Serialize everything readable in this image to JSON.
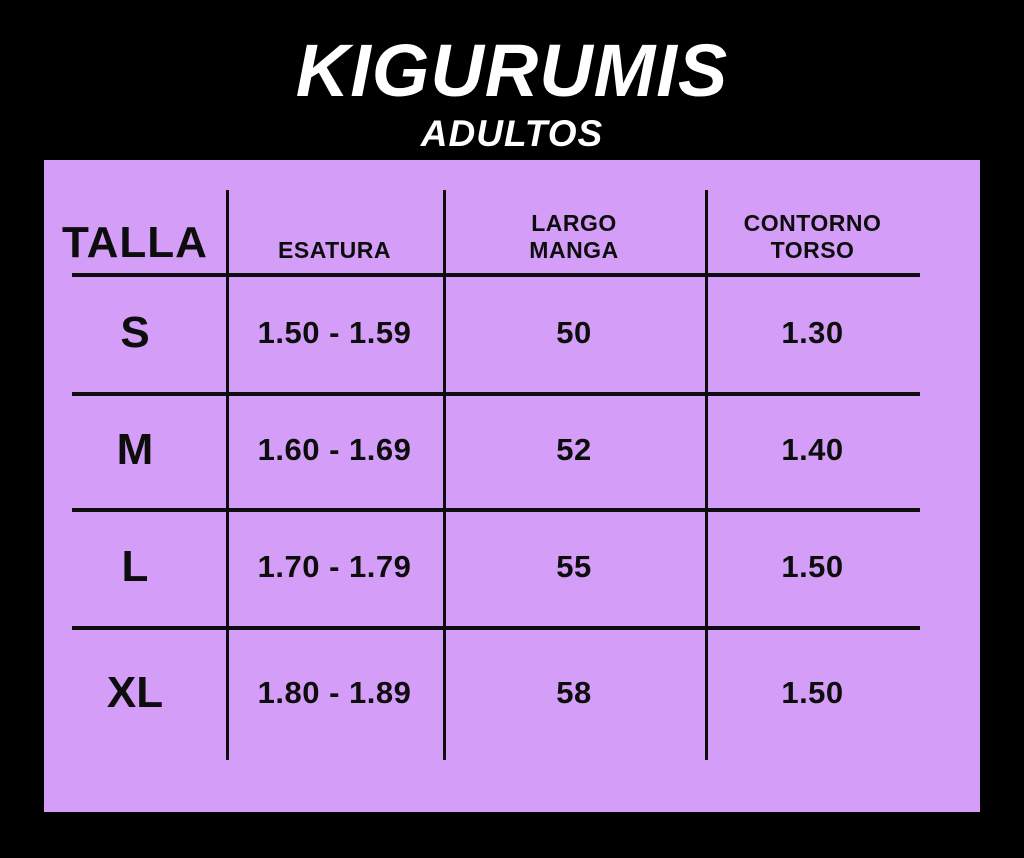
{
  "title": {
    "main": "KIGURUMIS",
    "subtitle": "ADULTOS"
  },
  "colors": {
    "background": "#000000",
    "panel": "#d49df7",
    "ink": "#0d0d0d",
    "title_text": "#ffffff"
  },
  "table_display": {
    "col_labels": [
      "TALLA",
      "ESATURA",
      "LARGO\nMANGA",
      "CONTORNO\nTORSO"
    ]
  },
  "chart_data": {
    "type": "table",
    "title": "KIGURUMIS ADULTOS",
    "columns": [
      "TALLA",
      "ESATURA",
      "LARGO MANGA",
      "CONTORNO TORSO"
    ],
    "rows": [
      [
        "S",
        "1.50 - 1.59",
        "50",
        "1.30"
      ],
      [
        "M",
        "1.60 - 1.69",
        "52",
        "1.40"
      ],
      [
        "L",
        "1.70 - 1.79",
        "55",
        "1.50"
      ],
      [
        "XL",
        "1.80 - 1.89",
        "58",
        "1.50"
      ]
    ]
  }
}
